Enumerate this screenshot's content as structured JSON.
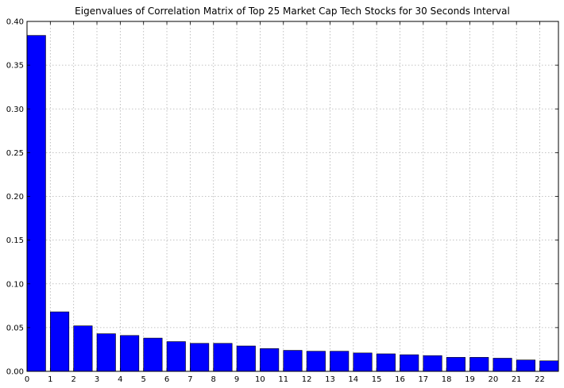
{
  "chart_data": {
    "type": "bar",
    "title": "Eigenvalues of Correlation Matrix of Top 25 Market Cap Tech Stocks for 30 Seconds Interval",
    "xlabel": "",
    "ylabel": "",
    "categories": [
      "0",
      "1",
      "2",
      "3",
      "4",
      "5",
      "6",
      "7",
      "8",
      "9",
      "10",
      "11",
      "12",
      "13",
      "14",
      "15",
      "16",
      "17",
      "18",
      "19",
      "20",
      "21",
      "22"
    ],
    "values": [
      0.384,
      0.068,
      0.052,
      0.043,
      0.041,
      0.038,
      0.034,
      0.032,
      0.032,
      0.029,
      0.026,
      0.024,
      0.023,
      0.023,
      0.021,
      0.02,
      0.019,
      0.018,
      0.016,
      0.016,
      0.015,
      0.013,
      0.012
    ],
    "xlim": [
      0,
      22.8
    ],
    "ylim": [
      0,
      0.4
    ],
    "yticks": [
      0.0,
      0.05,
      0.1,
      0.15,
      0.2,
      0.25,
      0.3,
      0.35,
      0.4
    ],
    "ytick_labels": [
      "0.00",
      "0.05",
      "0.10",
      "0.15",
      "0.20",
      "0.25",
      "0.30",
      "0.35",
      "0.40"
    ],
    "grid": true,
    "bar_color": "#0000ff",
    "bar_edge_color": "#000000",
    "grid_color": "#b0b0b0"
  }
}
